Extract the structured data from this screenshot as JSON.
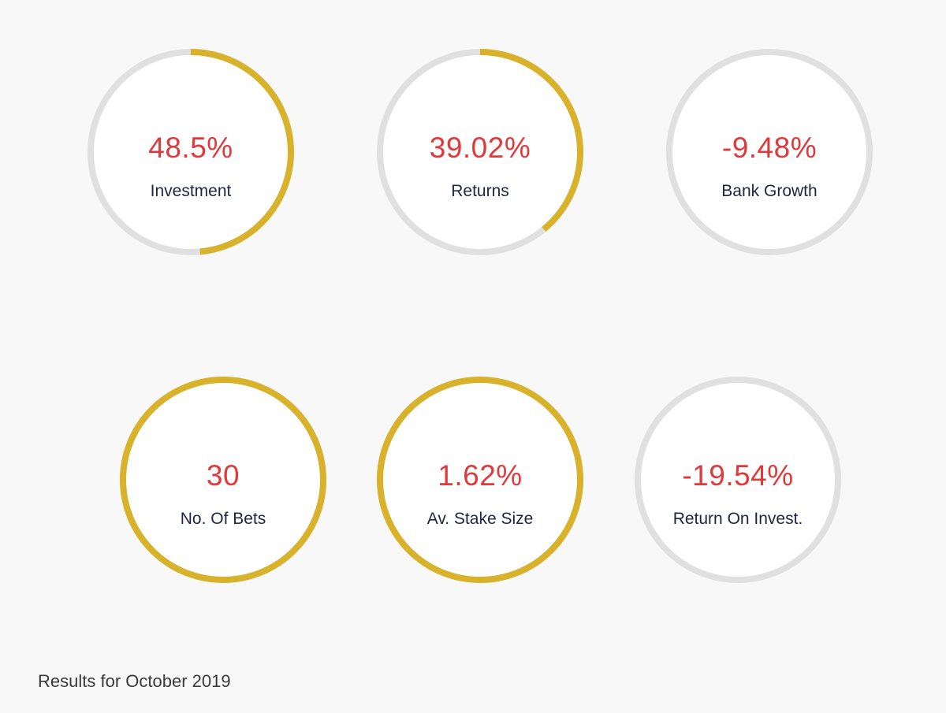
{
  "colors": {
    "background": "#f8f8f8",
    "track": "#e0e0e0",
    "progress": "#d9b22c",
    "value_text": "#e0393c",
    "label_text": "#1e2540"
  },
  "gauges": [
    {
      "value": "48.5%",
      "label": "Investment",
      "fraction": 0.485
    },
    {
      "value": "39.02%",
      "label": "Returns",
      "fraction": 0.3902
    },
    {
      "value": "-9.48%",
      "label": "Bank Growth",
      "fraction": 0
    },
    {
      "value": "30",
      "label": "No. Of Bets",
      "fraction": 1
    },
    {
      "value": "1.62%",
      "label": "Av. Stake Size",
      "fraction": 1
    },
    {
      "value": "-19.54%",
      "label": "Return On Invest.",
      "fraction": 0
    }
  ],
  "footer": {
    "text": "Results for October 2019"
  }
}
